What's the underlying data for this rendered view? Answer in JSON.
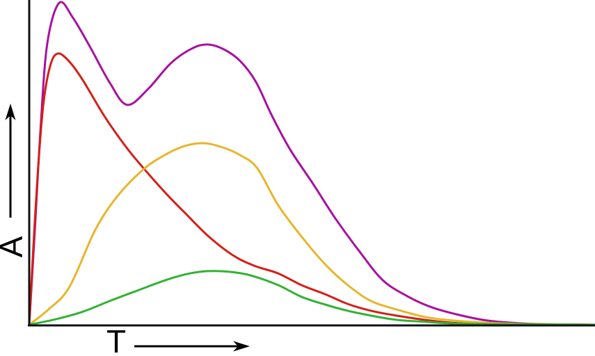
{
  "chart_data": {
    "type": "line",
    "title": "",
    "xlabel": "T",
    "ylabel": "A",
    "xlim": [
      0,
      100
    ],
    "ylim": [
      0,
      100
    ],
    "grid": false,
    "legend": "none",
    "background": "#ffffff",
    "axes_color": "#111111",
    "axis_arrows": {
      "y": "up",
      "x": "right"
    },
    "series": [
      {
        "name": "purple",
        "color": "#A810A0",
        "points": [
          [
            0,
            0
          ],
          [
            1.0,
            29.3
          ],
          [
            2.0,
            60.4
          ],
          [
            3.2,
            86.7
          ],
          [
            5.3,
            99.1
          ],
          [
            7.7,
            94.6
          ],
          [
            10.8,
            85.4
          ],
          [
            14.3,
            74.3
          ],
          [
            17.3,
            67.7
          ],
          [
            20.9,
            72.4
          ],
          [
            25.0,
            80.5
          ],
          [
            28.7,
            85.0
          ],
          [
            31.5,
            86.3
          ],
          [
            34.4,
            84.8
          ],
          [
            37.3,
            81.2
          ],
          [
            40.1,
            74.7
          ],
          [
            42.8,
            64.7
          ],
          [
            46.1,
            54.0
          ],
          [
            50.2,
            43.3
          ],
          [
            54.2,
            32.5
          ],
          [
            58.4,
            22.5
          ],
          [
            62.5,
            13.7
          ],
          [
            66.8,
            8.8
          ],
          [
            71.1,
            5.4
          ],
          [
            76.0,
            3.0
          ],
          [
            80.9,
            1.3
          ],
          [
            87.1,
            0.4
          ],
          [
            93.2,
            0.1
          ],
          [
            100,
            0
          ]
        ]
      },
      {
        "name": "red",
        "color": "#D32018",
        "points": [
          [
            0,
            0
          ],
          [
            0.7,
            22.9
          ],
          [
            1.5,
            46.5
          ],
          [
            2.5,
            67.9
          ],
          [
            3.7,
            79.7
          ],
          [
            5.0,
            83.5
          ],
          [
            6.9,
            81.4
          ],
          [
            9.3,
            75.8
          ],
          [
            13.3,
            64.2
          ],
          [
            17.0,
            55.0
          ],
          [
            20.3,
            48.0
          ],
          [
            24.4,
            40.0
          ],
          [
            28.0,
            33.6
          ],
          [
            31.7,
            27.2
          ],
          [
            36.0,
            21.4
          ],
          [
            39.7,
            18.2
          ],
          [
            44.0,
            15.8
          ],
          [
            48.1,
            12.2
          ],
          [
            52.3,
            9.4
          ],
          [
            56.3,
            6.4
          ],
          [
            60.4,
            4.3
          ],
          [
            64.9,
            2.8
          ],
          [
            69.9,
            1.5
          ],
          [
            74.8,
            0.6
          ],
          [
            80.9,
            0.2
          ],
          [
            88.3,
            0.1
          ],
          [
            100,
            0
          ]
        ]
      },
      {
        "name": "yellow",
        "color": "#E8B52A",
        "points": [
          [
            0,
            0
          ],
          [
            3.4,
            4.7
          ],
          [
            7.1,
            11.6
          ],
          [
            11.7,
            29.3
          ],
          [
            15.7,
            39.8
          ],
          [
            20.3,
            48.0
          ],
          [
            24.4,
            52.7
          ],
          [
            27.8,
            55.2
          ],
          [
            30.9,
            55.9
          ],
          [
            34.2,
            54.6
          ],
          [
            37.3,
            52.2
          ],
          [
            40.3,
            48.2
          ],
          [
            44.0,
            36.8
          ],
          [
            48.1,
            27.2
          ],
          [
            52.3,
            18.6
          ],
          [
            56.3,
            12.2
          ],
          [
            60.4,
            7.3
          ],
          [
            64.9,
            4.7
          ],
          [
            69.9,
            2.4
          ],
          [
            74.8,
            1.3
          ],
          [
            80.9,
            0.6
          ],
          [
            88.3,
            0.2
          ],
          [
            100,
            0
          ]
        ]
      },
      {
        "name": "green",
        "color": "#33B135",
        "points": [
          [
            0,
            0
          ],
          [
            4.7,
            1.7
          ],
          [
            9.6,
            4.1
          ],
          [
            14.5,
            7.5
          ],
          [
            19.4,
            10.7
          ],
          [
            24.4,
            13.9
          ],
          [
            28.4,
            15.8
          ],
          [
            31.7,
            16.5
          ],
          [
            35.4,
            16.3
          ],
          [
            39.1,
            15.2
          ],
          [
            44.0,
            12.2
          ],
          [
            48.1,
            8.6
          ],
          [
            52.3,
            6.2
          ],
          [
            56.3,
            4.3
          ],
          [
            60.4,
            2.8
          ],
          [
            64.9,
            1.5
          ],
          [
            69.9,
            0.9
          ],
          [
            74.8,
            0.4
          ],
          [
            80.9,
            0.2
          ],
          [
            88.3,
            0.1
          ],
          [
            100,
            0
          ]
        ]
      }
    ]
  }
}
